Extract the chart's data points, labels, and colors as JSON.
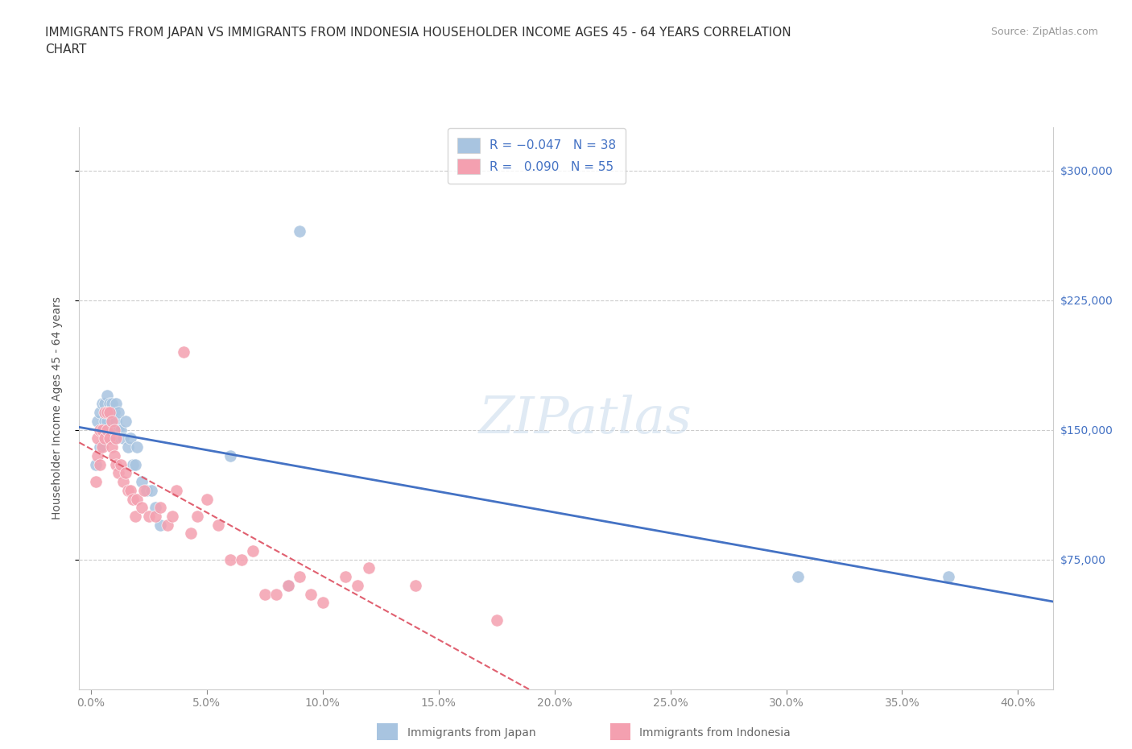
{
  "title": "IMMIGRANTS FROM JAPAN VS IMMIGRANTS FROM INDONESIA HOUSEHOLDER INCOME AGES 45 - 64 YEARS CORRELATION\nCHART",
  "source": "Source: ZipAtlas.com",
  "xlabel_ticks": [
    "0.0%",
    "5.0%",
    "10.0%",
    "15.0%",
    "20.0%",
    "25.0%",
    "30.0%",
    "35.0%",
    "40.0%"
  ],
  "xlabel_vals": [
    0.0,
    0.05,
    0.1,
    0.15,
    0.2,
    0.25,
    0.3,
    0.35,
    0.4
  ],
  "ylabel": "Householder Income Ages 45 - 64 years",
  "ylabel_vals": [
    75000,
    150000,
    225000,
    300000
  ],
  "xlim": [
    -0.005,
    0.415
  ],
  "ylim": [
    0,
    325000
  ],
  "japan_color": "#a8c4e0",
  "indonesia_color": "#f4a0b0",
  "japan_line_color": "#4472c4",
  "indonesia_line_color": "#e06070",
  "watermark_text": "ZIPatlas",
  "japan_scatter_x": [
    0.002,
    0.003,
    0.004,
    0.004,
    0.005,
    0.005,
    0.006,
    0.006,
    0.007,
    0.007,
    0.008,
    0.008,
    0.009,
    0.009,
    0.01,
    0.01,
    0.011,
    0.011,
    0.012,
    0.012,
    0.013,
    0.014,
    0.015,
    0.016,
    0.017,
    0.018,
    0.019,
    0.02,
    0.022,
    0.024,
    0.026,
    0.028,
    0.03,
    0.06,
    0.085,
    0.09,
    0.305,
    0.37
  ],
  "japan_scatter_y": [
    130000,
    155000,
    140000,
    160000,
    150000,
    165000,
    155000,
    165000,
    155000,
    170000,
    160000,
    165000,
    150000,
    165000,
    145000,
    160000,
    155000,
    165000,
    150000,
    160000,
    150000,
    145000,
    155000,
    140000,
    145000,
    130000,
    130000,
    140000,
    120000,
    115000,
    115000,
    105000,
    95000,
    135000,
    60000,
    265000,
    65000,
    65000
  ],
  "indonesia_scatter_x": [
    0.002,
    0.003,
    0.003,
    0.004,
    0.004,
    0.005,
    0.005,
    0.006,
    0.006,
    0.007,
    0.007,
    0.008,
    0.008,
    0.009,
    0.009,
    0.01,
    0.01,
    0.011,
    0.011,
    0.012,
    0.013,
    0.014,
    0.015,
    0.016,
    0.017,
    0.018,
    0.019,
    0.02,
    0.022,
    0.023,
    0.025,
    0.028,
    0.03,
    0.033,
    0.035,
    0.037,
    0.04,
    0.043,
    0.046,
    0.05,
    0.055,
    0.06,
    0.065,
    0.07,
    0.075,
    0.08,
    0.085,
    0.09,
    0.095,
    0.1,
    0.11,
    0.115,
    0.12,
    0.14,
    0.175
  ],
  "indonesia_scatter_y": [
    120000,
    135000,
    145000,
    130000,
    150000,
    140000,
    150000,
    145000,
    160000,
    150000,
    160000,
    145000,
    160000,
    140000,
    155000,
    135000,
    150000,
    130000,
    145000,
    125000,
    130000,
    120000,
    125000,
    115000,
    115000,
    110000,
    100000,
    110000,
    105000,
    115000,
    100000,
    100000,
    105000,
    95000,
    100000,
    115000,
    195000,
    90000,
    100000,
    110000,
    95000,
    75000,
    75000,
    80000,
    55000,
    55000,
    60000,
    65000,
    55000,
    50000,
    65000,
    60000,
    70000,
    60000,
    40000
  ]
}
